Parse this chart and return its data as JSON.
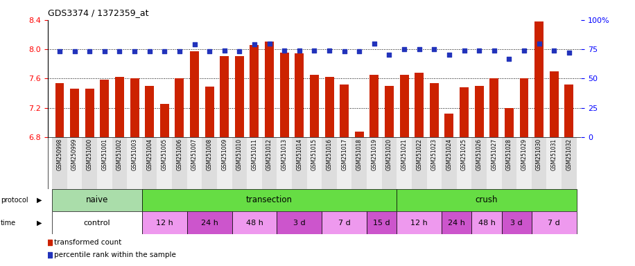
{
  "title": "GDS3374 / 1372359_at",
  "samples": [
    "GSM250998",
    "GSM250999",
    "GSM251000",
    "GSM251001",
    "GSM251002",
    "GSM251003",
    "GSM251004",
    "GSM251005",
    "GSM251006",
    "GSM251007",
    "GSM251008",
    "GSM251009",
    "GSM251010",
    "GSM251011",
    "GSM251012",
    "GSM251013",
    "GSM251014",
    "GSM251015",
    "GSM251016",
    "GSM251017",
    "GSM251018",
    "GSM251019",
    "GSM251020",
    "GSM251021",
    "GSM251022",
    "GSM251023",
    "GSM251024",
    "GSM251025",
    "GSM251026",
    "GSM251027",
    "GSM251028",
    "GSM251029",
    "GSM251030",
    "GSM251031",
    "GSM251032"
  ],
  "bar_values": [
    7.54,
    7.46,
    7.46,
    7.58,
    7.62,
    7.6,
    7.5,
    7.25,
    7.6,
    7.97,
    7.49,
    7.91,
    7.91,
    8.06,
    8.1,
    7.95,
    7.94,
    7.65,
    7.62,
    7.52,
    6.87,
    7.65,
    7.5,
    7.65,
    7.68,
    7.54,
    7.12,
    7.48,
    7.5,
    7.6,
    7.2,
    7.6,
    8.38,
    7.7,
    7.52
  ],
  "percentile_values": [
    73,
    73,
    73,
    73,
    73,
    73,
    73,
    73,
    73,
    79,
    73,
    74,
    73,
    79,
    80,
    74,
    74,
    74,
    74,
    73,
    73,
    80,
    70,
    75,
    75,
    75,
    70,
    74,
    74,
    74,
    67,
    74,
    80,
    74,
    72
  ],
  "ylim_left": [
    6.8,
    8.4
  ],
  "ylim_right": [
    0,
    100
  ],
  "yticks_left": [
    6.8,
    7.2,
    7.6,
    8.0,
    8.4
  ],
  "yticks_right": [
    0,
    25,
    50,
    75,
    100
  ],
  "bar_color": "#cc2200",
  "scatter_color": "#2233bb",
  "background_color": "#ffffff",
  "plot_bg_color": "#ffffff",
  "xtick_bg_even": "#dddddd",
  "xtick_bg_odd": "#eeeeee",
  "protocol_groups": [
    {
      "label": "naive",
      "start": 0,
      "end": 5,
      "color": "#aaddaa"
    },
    {
      "label": "transection",
      "start": 6,
      "end": 22,
      "color": "#66dd44"
    },
    {
      "label": "crush",
      "start": 23,
      "end": 34,
      "color": "#66dd44"
    }
  ],
  "time_groups": [
    {
      "label": "control",
      "start": 0,
      "end": 5,
      "color": "#ffffff"
    },
    {
      "label": "12 h",
      "start": 6,
      "end": 8,
      "color": "#ee99ee"
    },
    {
      "label": "24 h",
      "start": 9,
      "end": 11,
      "color": "#cc55cc"
    },
    {
      "label": "48 h",
      "start": 12,
      "end": 14,
      "color": "#ee99ee"
    },
    {
      "label": "3 d",
      "start": 15,
      "end": 17,
      "color": "#cc55cc"
    },
    {
      "label": "7 d",
      "start": 18,
      "end": 20,
      "color": "#ee99ee"
    },
    {
      "label": "15 d",
      "start": 21,
      "end": 22,
      "color": "#cc55cc"
    },
    {
      "label": "12 h",
      "start": 23,
      "end": 25,
      "color": "#ee99ee"
    },
    {
      "label": "24 h",
      "start": 26,
      "end": 27,
      "color": "#cc55cc"
    },
    {
      "label": "48 h",
      "start": 28,
      "end": 29,
      "color": "#ee99ee"
    },
    {
      "label": "3 d",
      "start": 30,
      "end": 31,
      "color": "#cc55cc"
    },
    {
      "label": "7 d",
      "start": 32,
      "end": 34,
      "color": "#ee99ee"
    }
  ]
}
